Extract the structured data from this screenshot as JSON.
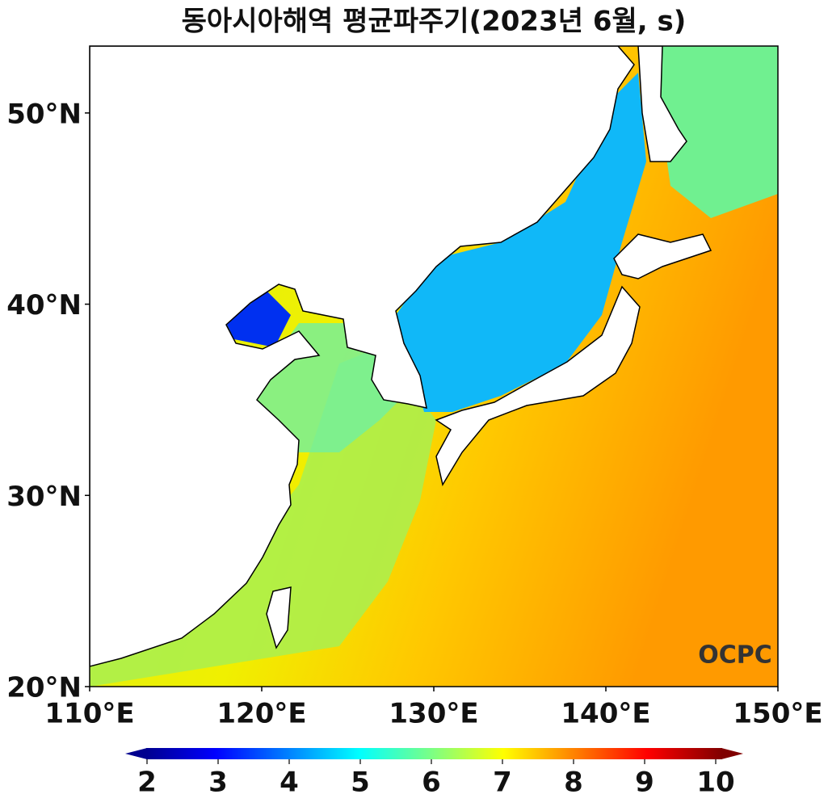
{
  "chart_data": {
    "type": "map",
    "title": "동아시아해역 평균파주기(2023년 6월, s)",
    "xlim": [
      110,
      150
    ],
    "ylim": [
      20,
      53.5
    ],
    "xticks": [
      {
        "value": 110,
        "label": "110°E"
      },
      {
        "value": 120,
        "label": "120°E"
      },
      {
        "value": 130,
        "label": "130°E"
      },
      {
        "value": 140,
        "label": "140°E"
      },
      {
        "value": 150,
        "label": "150°E"
      }
    ],
    "yticks": [
      {
        "value": 20,
        "label": "20°N"
      },
      {
        "value": 30,
        "label": "30°N"
      },
      {
        "value": 40,
        "label": "40°N"
      },
      {
        "value": 50,
        "label": "50°N"
      }
    ],
    "colorbar": {
      "lim": [
        2,
        10
      ],
      "ticks": [
        2,
        3,
        4,
        5,
        6,
        7,
        8,
        9,
        10
      ]
    },
    "logo": "OCPC"
  }
}
